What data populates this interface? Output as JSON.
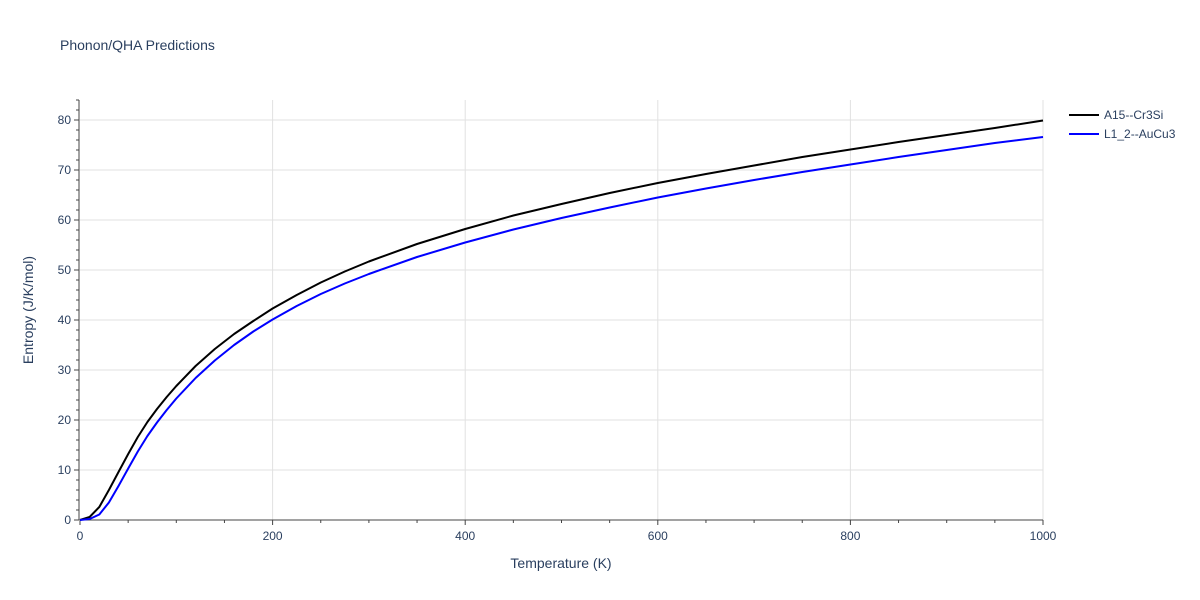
{
  "chart_data": {
    "type": "line",
    "title": "Phonon/QHA Predictions",
    "xlabel": "Temperature (K)",
    "ylabel": "Entropy (J/K/mol)",
    "xlim": [
      0,
      1000
    ],
    "ylim": [
      0,
      84
    ],
    "x_ticks": [
      0,
      200,
      400,
      600,
      800,
      1000
    ],
    "y_ticks": [
      0,
      10,
      20,
      30,
      40,
      50,
      60,
      70,
      80
    ],
    "grid": true,
    "legend_position": "top-right",
    "series": [
      {
        "name": "A15--Cr3Si",
        "color": "#000000",
        "x": [
          0,
          10,
          20,
          30,
          40,
          50,
          60,
          70,
          80,
          90,
          100,
          120,
          140,
          160,
          180,
          200,
          225,
          250,
          275,
          300,
          350,
          400,
          450,
          500,
          550,
          600,
          650,
          700,
          750,
          800,
          850,
          900,
          950,
          1000
        ],
        "y": [
          0,
          0.6,
          2.6,
          6.0,
          9.6,
          13.2,
          16.6,
          19.6,
          22.2,
          24.6,
          26.8,
          30.8,
          34.2,
          37.2,
          39.8,
          42.3,
          45.0,
          47.5,
          49.7,
          51.7,
          55.2,
          58.2,
          60.9,
          63.2,
          65.4,
          67.4,
          69.2,
          70.9,
          72.6,
          74.1,
          75.6,
          77.0,
          78.4,
          79.9
        ]
      },
      {
        "name": "L1_2--AuCu3",
        "color": "#0000ff",
        "x": [
          0,
          10,
          20,
          30,
          40,
          50,
          60,
          70,
          80,
          90,
          100,
          120,
          140,
          160,
          180,
          200,
          225,
          250,
          275,
          300,
          350,
          400,
          450,
          500,
          550,
          600,
          650,
          700,
          750,
          800,
          850,
          900,
          950,
          1000
        ],
        "y": [
          0,
          0.2,
          1.1,
          3.5,
          6.8,
          10.3,
          13.7,
          16.8,
          19.5,
          22.0,
          24.3,
          28.4,
          31.9,
          35.0,
          37.7,
          40.1,
          42.8,
          45.2,
          47.3,
          49.2,
          52.6,
          55.5,
          58.1,
          60.4,
          62.5,
          64.5,
          66.3,
          68.0,
          69.6,
          71.1,
          72.6,
          74.0,
          75.4,
          76.6
        ]
      }
    ]
  }
}
